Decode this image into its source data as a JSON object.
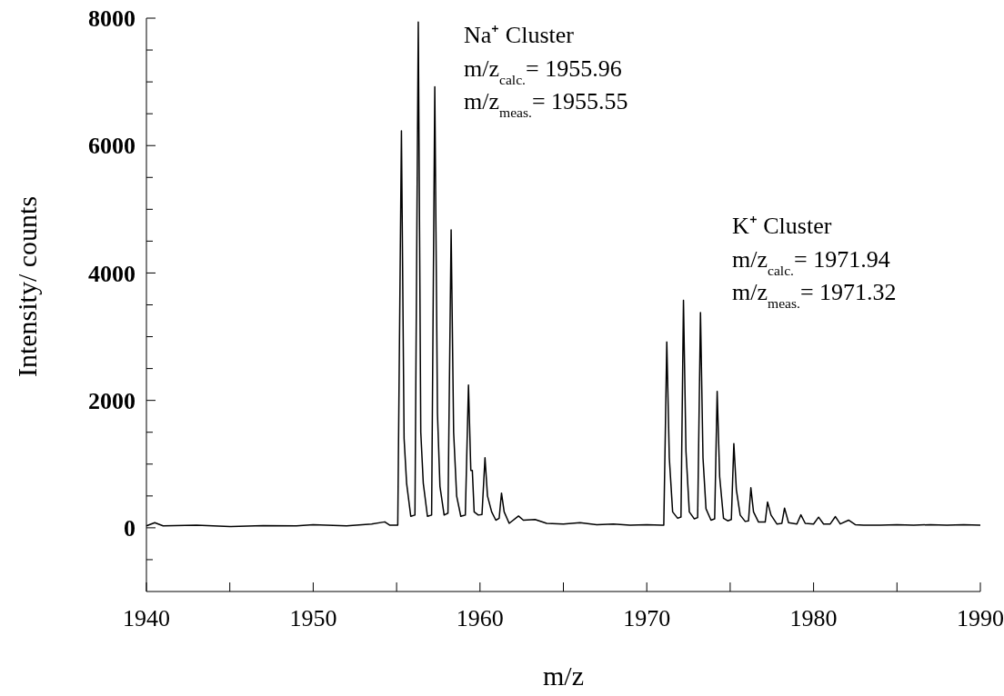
{
  "chart_data": {
    "type": "line",
    "xlabel": "m/z",
    "ylabel": "Intensity/ counts",
    "annotations": [
      "Na⁺ Cluster",
      "m/z$_{calc.}$= 1955.96",
      "m/z$_{meas.}$= 1955.55",
      "K⁺ Cluster",
      "m/z$_{calc.}$= 1971.94",
      "m/z$_{meas.}$= 1971.32"
    ],
    "x": [
      1940.0,
      1940.5,
      1941,
      1943,
      1945,
      1947,
      1949,
      1950,
      1952,
      1953.5,
      1954.29,
      1954.6,
      1955.07,
      1955.29,
      1955.45,
      1955.6,
      1955.85,
      1956.1,
      1956.3,
      1956.45,
      1956.6,
      1956.85,
      1957.1,
      1957.29,
      1957.45,
      1957.6,
      1957.85,
      1958.08,
      1958.27,
      1958.42,
      1958.6,
      1958.85,
      1959.12,
      1959.31,
      1959.45,
      1959.54,
      1959.65,
      1959.9,
      1960.12,
      1960.3,
      1960.45,
      1960.7,
      1960.95,
      1961.15,
      1961.29,
      1961.45,
      1961.75,
      1962.31,
      1962.6,
      1963.3,
      1964,
      1965,
      1966,
      1967,
      1968,
      1969,
      1970,
      1970.9,
      1971.02,
      1971.2,
      1971.35,
      1971.55,
      1971.85,
      1972.05,
      1972.2,
      1972.35,
      1972.55,
      1972.85,
      1973.05,
      1973.22,
      1973.37,
      1973.55,
      1973.85,
      1974.07,
      1974.22,
      1974.37,
      1974.6,
      1974.85,
      1975.07,
      1975.22,
      1975.37,
      1975.6,
      1975.9,
      1976.1,
      1976.24,
      1976.4,
      1976.7,
      1977.1,
      1977.24,
      1977.45,
      1977.8,
      1978.1,
      1978.26,
      1978.5,
      1979.0,
      1979.24,
      1979.5,
      1980.0,
      1980.3,
      1980.6,
      1981.0,
      1981.31,
      1981.6,
      1982.1,
      1982.5,
      1983,
      1984,
      1985,
      1986,
      1987,
      1988,
      1989,
      1990
    ],
    "series": [
      {
        "color": "#000000",
        "values": [
          30,
          80,
          30,
          40,
          20,
          35,
          30,
          50,
          30,
          60,
          93,
          40,
          40,
          6233,
          1400,
          700,
          180,
          200,
          7940,
          1500,
          700,
          180,
          200,
          6923,
          1800,
          650,
          200,
          230,
          4678,
          1500,
          500,
          180,
          200,
          2241,
          900,
          902,
          250,
          200,
          210,
          1100,
          500,
          250,
          120,
          150,
          545,
          250,
          70,
          185,
          120,
          130,
          70,
          60,
          80,
          50,
          60,
          40,
          50,
          40,
          40,
          2917,
          1100,
          250,
          150,
          170,
          3570,
          1200,
          250,
          140,
          160,
          3379,
          1100,
          300,
          120,
          140,
          2141,
          800,
          150,
          110,
          130,
          1323,
          600,
          200,
          100,
          110,
          628,
          250,
          90,
          90,
          404,
          200,
          60,
          70,
          310,
          80,
          60,
          204,
          70,
          60,
          167,
          60,
          60,
          176,
          60,
          120,
          50,
          40,
          40,
          50,
          40,
          50,
          40,
          50,
          40
        ]
      }
    ],
    "xlim": [
      1940,
      1990
    ],
    "xticks": [
      1940,
      {
        "value": 1945,
        "label": null
      },
      1950,
      {
        "value": 1955,
        "label": null
      },
      1960,
      {
        "value": 1965,
        "label": null
      },
      1970,
      {
        "value": 1975,
        "label": null
      },
      1980,
      {
        "value": 1985,
        "label": null
      },
      1990
    ],
    "ylim": [
      -1000,
      8000
    ],
    "yticks": [
      {
        "value": -500,
        "label": null
      },
      0,
      {
        "value": 500,
        "label": null
      },
      {
        "value": 1000,
        "label": null
      },
      {
        "value": 1500,
        "label": null
      },
      2000,
      {
        "value": 2500,
        "label": null
      },
      {
        "value": 3000,
        "label": null
      },
      {
        "value": 3500,
        "label": null
      },
      4000,
      {
        "value": 4500,
        "label": null
      },
      {
        "value": 5000,
        "label": null
      },
      {
        "value": 5500,
        "label": null
      },
      6000,
      {
        "value": 6500,
        "label": null
      },
      {
        "value": 7000,
        "label": null
      },
      {
        "value": 7500,
        "label": null
      },
      8000
    ]
  }
}
